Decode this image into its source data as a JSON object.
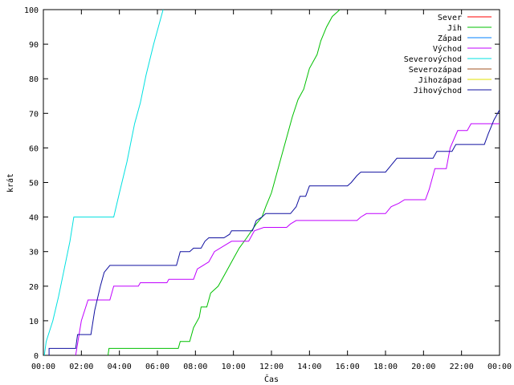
{
  "chart_data": {
    "type": "line",
    "title": "",
    "xlabel": "Čas",
    "ylabel": "krát",
    "xlim": [
      0,
      24
    ],
    "ylim": [
      0,
      100
    ],
    "grid": false,
    "legend_position": "top-right",
    "x_ticks": [
      {
        "value": 0,
        "label": "00:00"
      },
      {
        "value": 2,
        "label": "02:00"
      },
      {
        "value": 4,
        "label": "04:00"
      },
      {
        "value": 6,
        "label": "06:00"
      },
      {
        "value": 8,
        "label": "08:00"
      },
      {
        "value": 10,
        "label": "10:00"
      },
      {
        "value": 12,
        "label": "12:00"
      },
      {
        "value": 14,
        "label": "14:00"
      },
      {
        "value": 16,
        "label": "16:00"
      },
      {
        "value": 18,
        "label": "18:00"
      },
      {
        "value": 20,
        "label": "20:00"
      },
      {
        "value": 22,
        "label": "22:00"
      },
      {
        "value": 24,
        "label": "00:00"
      }
    ],
    "y_ticks": [
      0,
      10,
      20,
      30,
      40,
      50,
      60,
      70,
      80,
      90,
      100
    ],
    "series": [
      {
        "name": "Sever",
        "color": "#ff0000",
        "points": []
      },
      {
        "name": "Jih",
        "color": "#00c000",
        "points": [
          [
            3.4,
            0
          ],
          [
            3.45,
            2
          ],
          [
            7.1,
            2
          ],
          [
            7.2,
            4
          ],
          [
            7.7,
            4
          ],
          [
            7.9,
            8
          ],
          [
            8.2,
            11
          ],
          [
            8.3,
            14
          ],
          [
            8.6,
            14
          ],
          [
            8.8,
            18
          ],
          [
            9.2,
            20
          ],
          [
            9.6,
            24
          ],
          [
            9.9,
            27
          ],
          [
            10.3,
            31
          ],
          [
            10.7,
            34
          ],
          [
            11.2,
            38
          ],
          [
            11.5,
            40
          ],
          [
            11.7,
            43
          ],
          [
            12.0,
            47
          ],
          [
            12.2,
            51
          ],
          [
            12.5,
            57
          ],
          [
            12.8,
            63
          ],
          [
            13.1,
            69
          ],
          [
            13.4,
            74
          ],
          [
            13.7,
            77
          ],
          [
            14.0,
            83
          ],
          [
            14.4,
            87
          ],
          [
            14.6,
            91
          ],
          [
            14.9,
            95
          ],
          [
            15.2,
            98
          ],
          [
            15.6,
            100
          ]
        ]
      },
      {
        "name": "Západ",
        "color": "#0080ff",
        "points": []
      },
      {
        "name": "Východ",
        "color": "#c000ff",
        "points": [
          [
            1.7,
            0
          ],
          [
            2.0,
            10
          ],
          [
            2.35,
            16
          ],
          [
            3.5,
            16
          ],
          [
            3.7,
            20
          ],
          [
            5.0,
            20
          ],
          [
            5.1,
            21
          ],
          [
            6.5,
            21
          ],
          [
            6.6,
            22
          ],
          [
            7.9,
            22
          ],
          [
            8.1,
            25
          ],
          [
            8.7,
            27
          ],
          [
            9.0,
            30
          ],
          [
            9.6,
            32
          ],
          [
            9.9,
            33
          ],
          [
            10.8,
            33
          ],
          [
            11.1,
            36
          ],
          [
            11.6,
            37
          ],
          [
            12.8,
            37
          ],
          [
            13.0,
            38
          ],
          [
            13.3,
            39
          ],
          [
            16.5,
            39
          ],
          [
            16.7,
            40
          ],
          [
            17.0,
            41
          ],
          [
            18.0,
            41
          ],
          [
            18.3,
            43
          ],
          [
            18.7,
            44
          ],
          [
            19.0,
            45
          ],
          [
            20.1,
            45
          ],
          [
            20.3,
            48
          ],
          [
            20.6,
            54
          ],
          [
            21.2,
            54
          ],
          [
            21.4,
            60
          ],
          [
            21.8,
            65
          ],
          [
            22.3,
            65
          ],
          [
            22.5,
            67
          ],
          [
            24,
            67
          ]
        ]
      },
      {
        "name": "Severovýchod",
        "color": "#00e0e0",
        "points": [
          [
            0.05,
            0
          ],
          [
            0.15,
            4
          ],
          [
            0.5,
            10
          ],
          [
            0.8,
            17
          ],
          [
            1.1,
            25
          ],
          [
            1.4,
            33
          ],
          [
            1.6,
            40
          ],
          [
            3.7,
            40
          ],
          [
            4.0,
            47
          ],
          [
            4.4,
            56
          ],
          [
            4.8,
            67
          ],
          [
            5.1,
            73
          ],
          [
            5.4,
            81
          ],
          [
            5.8,
            90
          ],
          [
            6.1,
            96
          ],
          [
            6.3,
            100
          ]
        ]
      },
      {
        "name": "Severozápad",
        "color": "#a05020",
        "points": []
      },
      {
        "name": "Jihozápad",
        "color": "#e0e000",
        "points": []
      },
      {
        "name": "Jihovýchod",
        "color": "#1010a0",
        "points": [
          [
            0.3,
            0
          ],
          [
            0.3,
            2
          ],
          [
            1.7,
            2
          ],
          [
            1.8,
            6
          ],
          [
            2.5,
            6
          ],
          [
            2.7,
            13
          ],
          [
            3.0,
            20
          ],
          [
            3.2,
            24
          ],
          [
            3.5,
            26
          ],
          [
            7.0,
            26
          ],
          [
            7.2,
            30
          ],
          [
            7.7,
            30
          ],
          [
            7.9,
            31
          ],
          [
            8.3,
            31
          ],
          [
            8.5,
            33
          ],
          [
            8.7,
            34
          ],
          [
            9.5,
            34
          ],
          [
            9.8,
            35
          ],
          [
            9.9,
            36
          ],
          [
            11.0,
            36
          ],
          [
            11.2,
            39
          ],
          [
            11.5,
            40
          ],
          [
            11.7,
            41
          ],
          [
            13.0,
            41
          ],
          [
            13.3,
            43
          ],
          [
            13.5,
            46
          ],
          [
            13.8,
            46
          ],
          [
            14.0,
            49
          ],
          [
            16.0,
            49
          ],
          [
            16.2,
            50
          ],
          [
            16.5,
            52
          ],
          [
            16.7,
            53
          ],
          [
            18.0,
            53
          ],
          [
            18.3,
            55
          ],
          [
            18.6,
            57
          ],
          [
            20.5,
            57
          ],
          [
            20.7,
            59
          ],
          [
            21.5,
            59
          ],
          [
            21.7,
            61
          ],
          [
            23.2,
            61
          ],
          [
            23.4,
            64
          ],
          [
            23.7,
            68
          ],
          [
            24,
            71
          ]
        ]
      }
    ]
  }
}
